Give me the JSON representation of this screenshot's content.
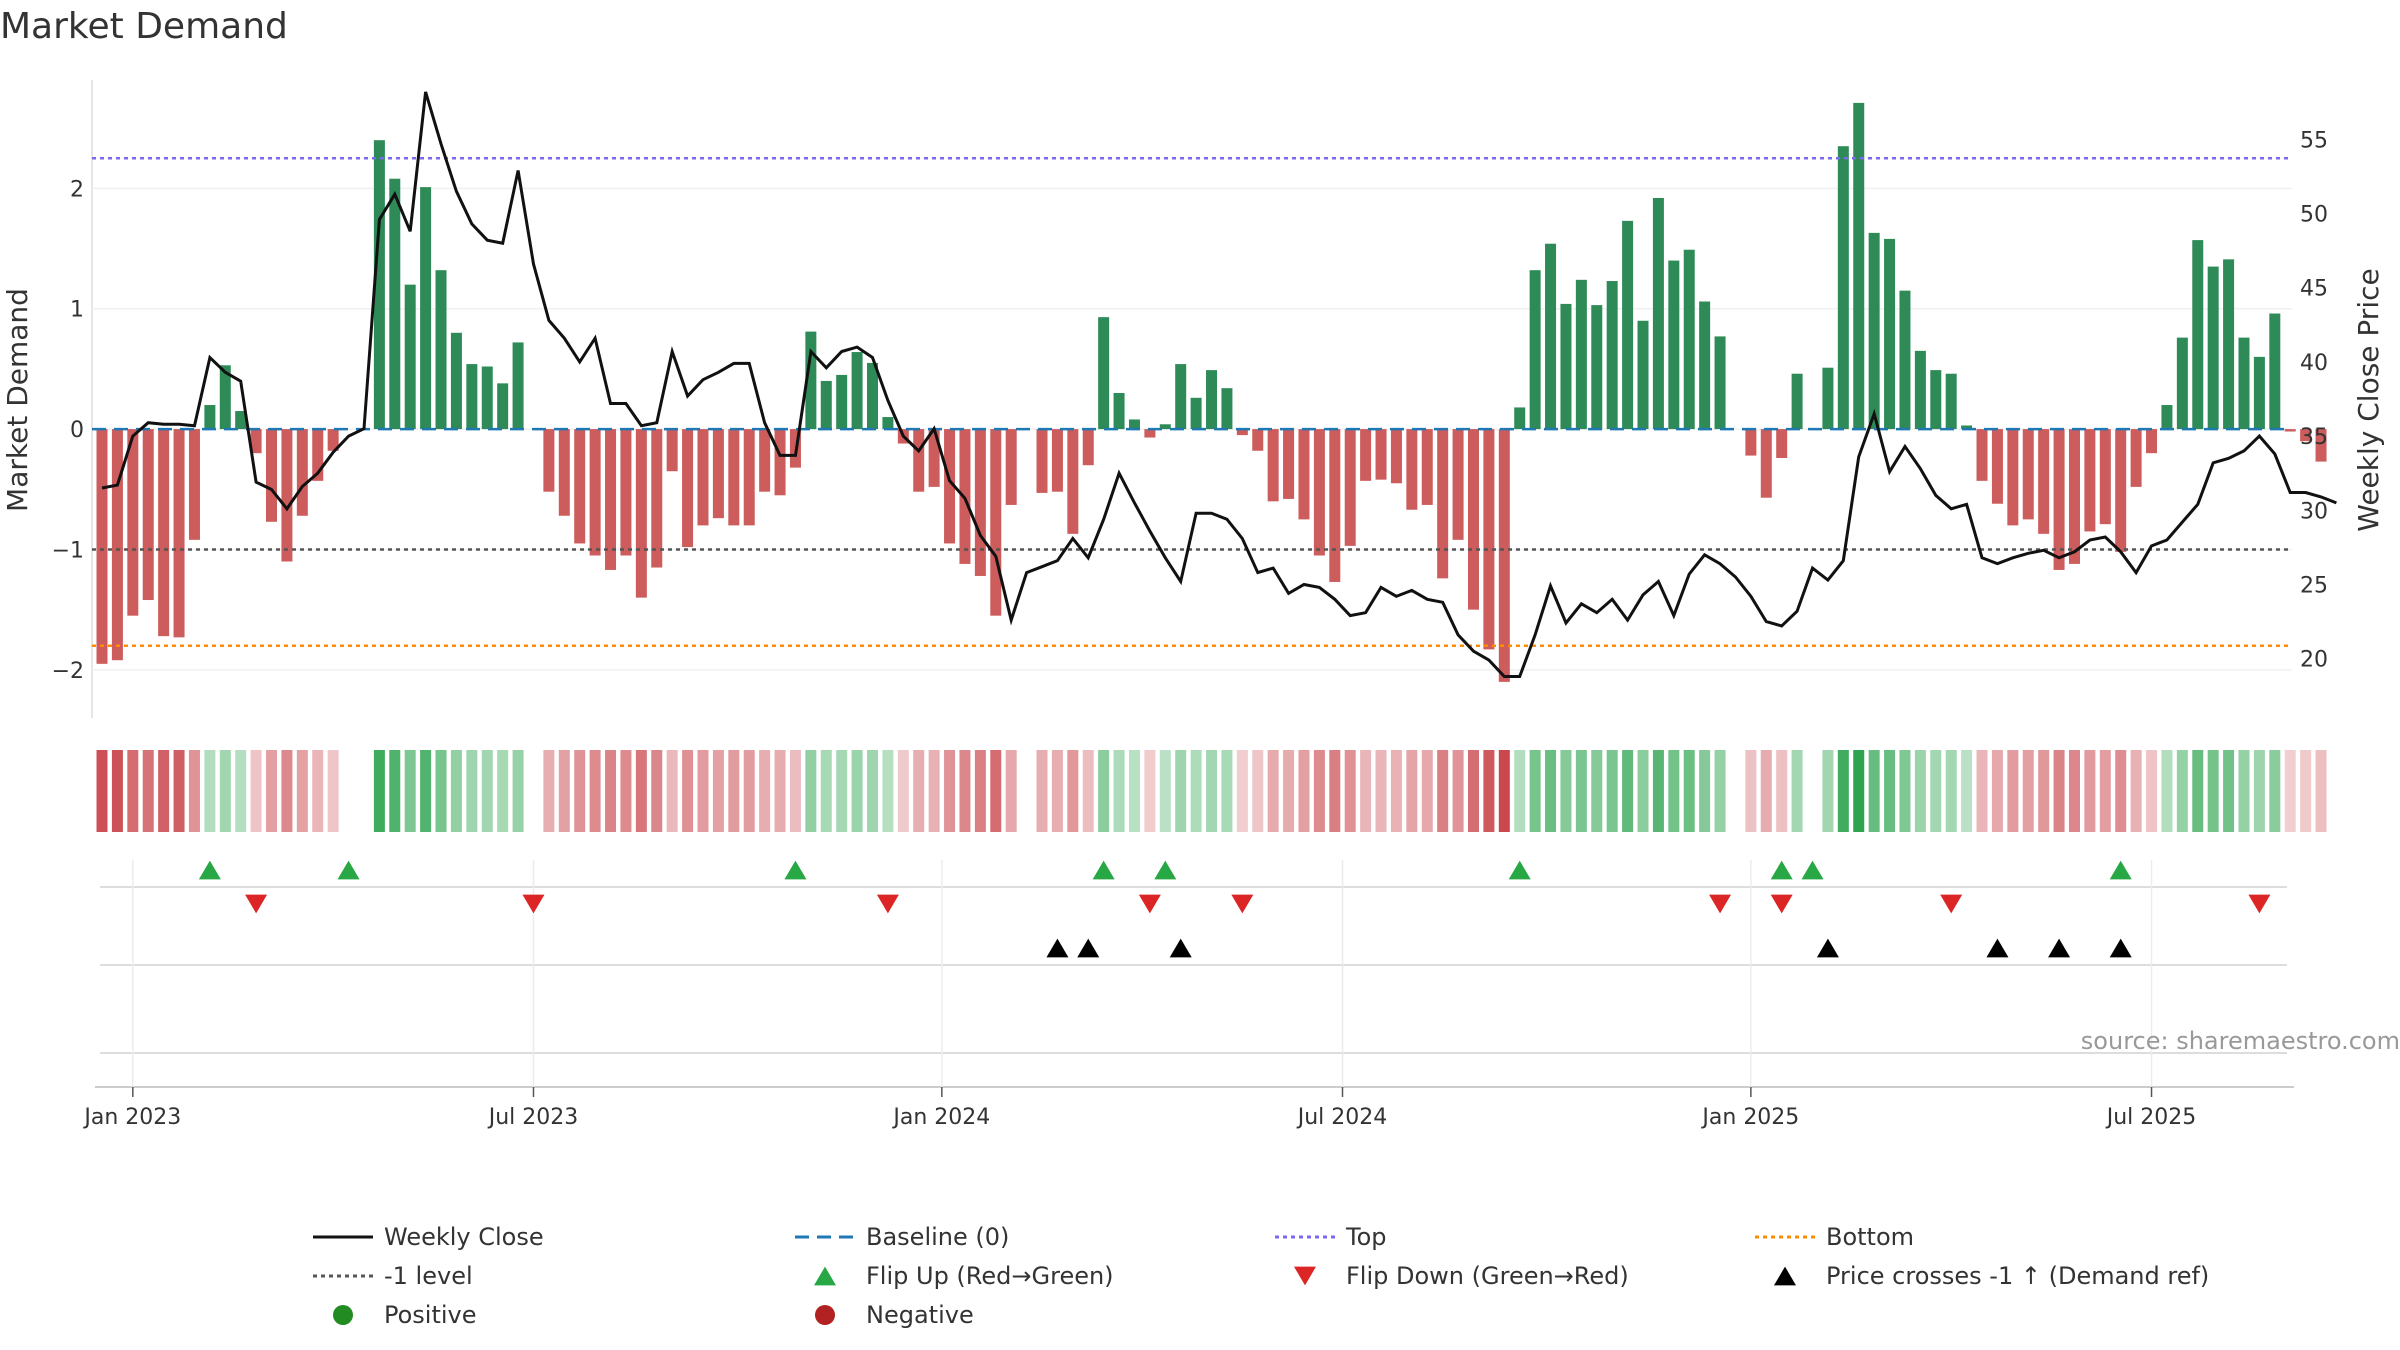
{
  "chart_data": {
    "type": "bar",
    "title": "Market Demand",
    "ylabel_left": "Market Demand",
    "ylabel_right": "Weekly Close Price",
    "source": "source: sharemaestro.com",
    "y_left": {
      "min": -2.4,
      "max": 2.9,
      "ticks": [
        2,
        1,
        0,
        -1,
        -2
      ],
      "tick_labels": [
        "2",
        "1",
        "0",
        "−1",
        "−2"
      ]
    },
    "y_right": {
      "min": 16,
      "max": 59,
      "ticks": [
        55,
        50,
        45,
        40,
        35,
        30,
        25,
        20
      ],
      "tick_labels": [
        "55",
        "50",
        "45",
        "40",
        "35",
        "30",
        "25",
        "20"
      ]
    },
    "x_ticks": [
      {
        "label": "Jan 2023",
        "week": 2
      },
      {
        "label": "Jul 2023",
        "week": 28
      },
      {
        "label": "Jan 2024",
        "week": 54.5
      },
      {
        "label": "Jul 2024",
        "week": 80.5
      },
      {
        "label": "Jan 2025",
        "week": 107
      },
      {
        "label": "Jul 2025",
        "week": 133
      }
    ],
    "reference_lines": {
      "top": 2.25,
      "bottom": -1.8,
      "minus_one": -1,
      "baseline": 0
    },
    "demand": [
      -1.95,
      -1.92,
      -1.55,
      -1.42,
      -1.72,
      -1.73,
      -0.92,
      0.2,
      0.53,
      0.15,
      -0.2,
      -0.77,
      -1.1,
      -0.72,
      -0.43,
      -0.18,
      0,
      0,
      2.4,
      2.08,
      1.2,
      2.01,
      1.32,
      0.8,
      0.54,
      0.52,
      0.38,
      0.72,
      0,
      -0.52,
      -0.72,
      -0.95,
      -1.05,
      -1.17,
      -1.05,
      -1.4,
      -1.15,
      -0.35,
      -0.98,
      -0.8,
      -0.74,
      -0.8,
      -0.8,
      -0.52,
      -0.55,
      -0.32,
      0.81,
      0.4,
      0.45,
      0.64,
      0.55,
      0.1,
      -0.12,
      -0.52,
      -0.48,
      -0.95,
      -1.12,
      -1.22,
      -1.55,
      -0.63,
      0,
      -0.53,
      -0.52,
      -0.87,
      -0.3,
      0.93,
      0.3,
      0.08,
      -0.07,
      0.04,
      0.54,
      0.26,
      0.49,
      0.34,
      -0.05,
      -0.18,
      -0.6,
      -0.58,
      -0.75,
      -1.05,
      -1.27,
      -0.97,
      -0.43,
      -0.42,
      -0.45,
      -0.67,
      -0.63,
      -1.24,
      -0.92,
      -1.5,
      -1.83,
      -2.1,
      0.18,
      1.32,
      1.54,
      1.04,
      1.24,
      1.03,
      1.23,
      1.73,
      0.9,
      1.92,
      1.4,
      1.49,
      1.06,
      0.77,
      0,
      -0.22,
      -0.57,
      -0.24,
      0.46,
      0,
      0.51,
      2.35,
      2.71,
      1.63,
      1.58,
      1.15,
      0.65,
      0.49,
      0.46,
      0.03,
      -0.43,
      -0.62,
      -0.8,
      -0.75,
      -0.87,
      -1.17,
      -1.12,
      -0.85,
      -0.79,
      -1.02,
      -0.48,
      -0.2,
      0.2,
      0.76,
      1.57,
      1.35,
      1.41,
      0.76,
      0.6,
      0.96,
      -0.02,
      -0.1,
      -0.27
    ],
    "weekly_close": [
      31.5,
      31.7,
      35,
      35.9,
      35.8,
      35.8,
      35.7,
      40.3,
      39.3,
      38.7,
      31.9,
      31.4,
      30.1,
      31.6,
      32.5,
      33.9,
      35,
      35.5,
      49.6,
      51.3,
      48.8,
      58.2,
      54.7,
      51.5,
      49.3,
      48.2,
      48,
      52.9,
      46.6,
      42.8,
      41.6,
      40,
      41.6,
      37.2,
      37.2,
      35.7,
      35.9,
      40.7,
      37.7,
      38.8,
      39.3,
      39.9,
      39.9,
      35.9,
      33.7,
      33.7,
      40.7,
      39.6,
      40.7,
      41,
      40.3,
      37.4,
      35,
      34,
      35.5,
      32,
      30.8,
      28.3,
      26.9,
      22.6,
      25.8,
      26.2,
      26.6,
      28.1,
      26.8,
      29.4,
      32.5,
      30.5,
      28.6,
      26.8,
      25.2,
      29.8,
      29.8,
      29.4,
      28.1,
      25.8,
      26.1,
      24.4,
      25,
      24.8,
      24,
      22.9,
      23.1,
      24.8,
      24.2,
      24.6,
      24,
      23.8,
      21.6,
      20.5,
      19.9,
      18.8,
      18.8,
      21.6,
      24.9,
      22.4,
      23.7,
      23.1,
      24,
      22.6,
      24.3,
      25.2,
      22.9,
      25.7,
      27,
      26.4,
      25.5,
      24.2,
      22.5,
      22.2,
      23.2,
      26.1,
      25.3,
      26.6,
      33.6,
      36.5,
      32.6,
      34.3,
      32.8,
      31,
      30.1,
      30.4,
      26.8,
      26.4,
      26.8,
      27.1,
      27.3,
      26.8,
      27.2,
      28,
      28.2,
      27.2,
      25.8,
      27.6,
      28,
      29.2,
      30.4,
      33.2,
      33.5,
      34,
      35,
      33.8,
      31.2,
      31.2,
      30.9,
      30.5
    ],
    "flip_up_weeks": [
      7,
      16,
      45,
      65,
      69,
      92,
      109,
      111,
      131
    ],
    "flip_down_weeks": [
      10,
      28,
      51,
      68,
      74,
      105,
      109,
      120,
      140
    ],
    "price_cross_weeks": [
      62,
      64,
      70,
      112,
      123,
      127,
      131
    ],
    "colors": {
      "positive_bar": "#2e8b57",
      "negative_bar": "#cd5c5c",
      "close_line": "#111111",
      "baseline": "#1f77b4",
      "top_line": "#7b68ee",
      "bottom_line": "#ff8c00",
      "minus_one_line": "#555555",
      "flip_up": "#28a745",
      "flip_down": "#dc2626",
      "price_cross": "#000000",
      "positive_dot": "#228b22",
      "negative_dot": "#b22222"
    },
    "legend": [
      {
        "label": "Weekly Close",
        "symbol": "line-solid",
        "color": "#111111"
      },
      {
        "label": "Baseline (0)",
        "symbol": "line-dash",
        "color": "#1f77b4"
      },
      {
        "label": "Top",
        "symbol": "line-dot",
        "color": "#7b68ee"
      },
      {
        "label": "Bottom",
        "symbol": "line-dot",
        "color": "#ff8c00"
      },
      {
        "label": "-1 level",
        "symbol": "line-dot",
        "color": "#555555"
      },
      {
        "label": "Flip Up (Red→Green)",
        "symbol": "tri-up",
        "color": "#28a745"
      },
      {
        "label": "Flip Down (Green→Red)",
        "symbol": "tri-down",
        "color": "#dc2626"
      },
      {
        "label": "Price crosses -1 ↑ (Demand ref)",
        "symbol": "tri-up",
        "color": "#000000"
      },
      {
        "label": "Positive",
        "symbol": "dot",
        "color": "#228b22"
      },
      {
        "label": "Negative",
        "symbol": "dot",
        "color": "#b22222"
      }
    ]
  }
}
